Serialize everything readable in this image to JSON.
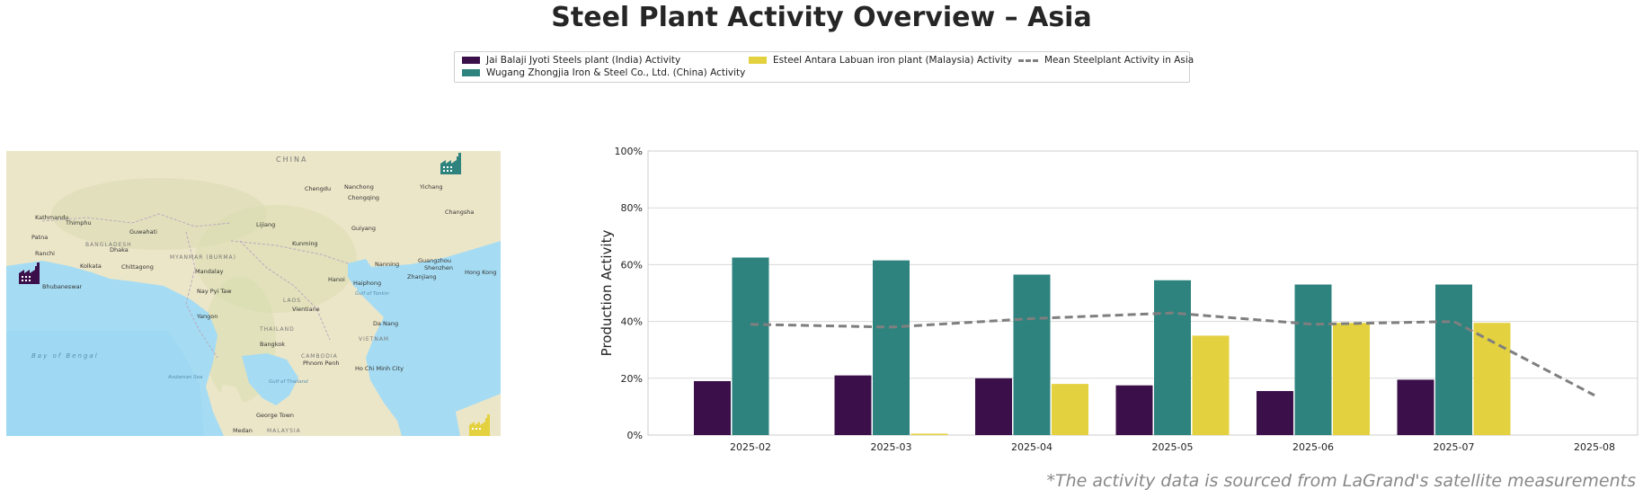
{
  "title": "Steel Plant Activity Overview – Asia",
  "footnote": "*The activity data is sourced from LaGrand's satellite measurements",
  "legend": [
    {
      "label": "Jai Balaji Jyoti Steels plant (India) Activity",
      "color": "#3b0f4a",
      "kind": "bar"
    },
    {
      "label": "Wugang Zhongjia Iron & Steel Co., Ltd. (China) Activity",
      "color": "#2e837e",
      "kind": "bar"
    },
    {
      "label": "Esteel Antara Labuan iron plant (Malaysia) Activity",
      "color": "#e3d13f",
      "kind": "bar"
    },
    {
      "label": "Mean Steelplant Activity in Asia",
      "color": "#7f7f7f",
      "kind": "dashed-line"
    }
  ],
  "map": {
    "labels": {
      "china": "CHINA",
      "chengdu": "Chengdu",
      "nanchong": "Nanchong",
      "chongqing": "Chongqing",
      "yichang": "Yichang",
      "changsha": "Changsha",
      "kathmandu": "Kathmandu",
      "thimphu": "Thimphu",
      "guwahati": "Guwahati",
      "lijiang": "Lijiang",
      "guiyang": "Guiyang",
      "patna": "Patna",
      "ranchi": "Ranchi",
      "dhaka": "Dhaka",
      "bangladesh": "BANGLADESH",
      "kolkata": "Kolkata",
      "chittagong": "Chittagong",
      "myanmar": "MYANMAR (BURMA)",
      "kunming": "Kunming",
      "mandalay": "Mandalay",
      "guangzhou": "Guangzhou",
      "shenzhen": "Shenzhen",
      "hongkong": "Hong Kong",
      "nanning": "Nanning",
      "bhubaneswar": "Bhubaneswar",
      "naypyitaw": "Nay Pyi Taw",
      "hanoi": "Hanoi",
      "haiphong": "Haiphong",
      "zhanjiang": "Zhanjiang",
      "gulftonkin": "Gulf of Tonkin",
      "laos": "LAOS",
      "vientiane": "Vientiane",
      "yangon": "Yangon",
      "thailand": "THAILAND",
      "danang": "Da Nang",
      "bayofbengal": "Bay of Bengal",
      "vietnam": "VIETNAM",
      "bangkok": "Bangkok",
      "cambodia": "CAMBODIA",
      "phnompenh": "Phnom Penh",
      "hochiminh": "Ho Chi Minh City",
      "andaman": "Andaman Sea",
      "gulfthailand": "Gulf of Thailand",
      "georgetown": "George Town",
      "medan": "Medan",
      "malaysia": "MALAYSIA"
    },
    "markers": [
      {
        "name": "china-plant-marker-icon",
        "color": "#2e837e"
      },
      {
        "name": "india-plant-marker-icon",
        "color": "#3b0f4a"
      },
      {
        "name": "malaysia-plant-marker-icon",
        "color": "#e3d13f"
      }
    ]
  },
  "chart_data": {
    "type": "bar",
    "categories": [
      "2025-02",
      "2025-03",
      "2025-04",
      "2025-05",
      "2025-06",
      "2025-07",
      "2025-08"
    ],
    "series": [
      {
        "name": "Jai Balaji Jyoti Steels plant (India) Activity",
        "type": "bar",
        "color": "#3b0f4a",
        "values": [
          19,
          21,
          20,
          17.5,
          15.5,
          19.5,
          null
        ]
      },
      {
        "name": "Wugang Zhongjia Iron & Steel Co., Ltd. (China) Activity",
        "type": "bar",
        "color": "#2e837e",
        "values": [
          62.5,
          61.5,
          56.5,
          54.5,
          53,
          53,
          null
        ]
      },
      {
        "name": "Esteel Antara Labuan iron plant (Malaysia) Activity",
        "type": "bar",
        "color": "#e3d13f",
        "values": [
          null,
          0.5,
          18,
          35,
          39.5,
          39.5,
          null
        ]
      },
      {
        "name": "Mean Steelplant Activity in Asia",
        "type": "line",
        "style": "dashed",
        "color": "#7f7f7f",
        "values": [
          39,
          38,
          41,
          43,
          39,
          40,
          14
        ]
      }
    ],
    "ylabel": "Production Activity",
    "ylim": [
      0,
      100
    ],
    "yticks": [
      "0%",
      "20%",
      "40%",
      "60%",
      "80%",
      "100%"
    ],
    "ytick_values": [
      0,
      20,
      40,
      60,
      80,
      100
    ],
    "grid": true,
    "legend_position": "top-center"
  }
}
